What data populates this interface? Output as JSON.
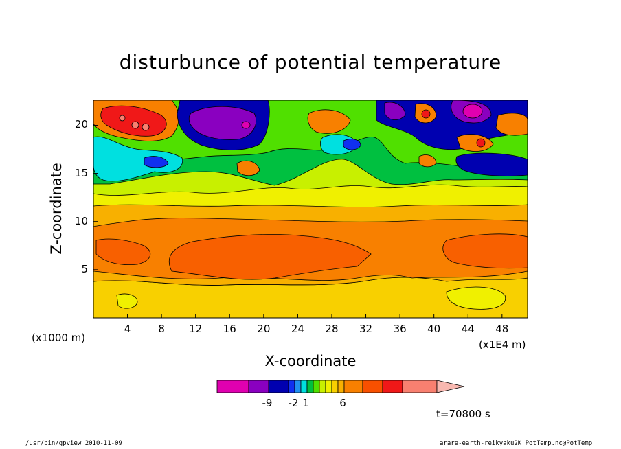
{
  "chart_data": {
    "type": "heatmap",
    "title": "disturbunce of potential temperature",
    "xlabel": "X-coordinate",
    "ylabel": "Z-coordinate",
    "x_unit": "(x1E4 m)",
    "y_unit": "(x1000 m)",
    "x_ticks": [
      "4",
      "8",
      "12",
      "16",
      "20",
      "24",
      "28",
      "32",
      "36",
      "40",
      "44",
      "48"
    ],
    "y_ticks": [
      "5",
      "10",
      "15",
      "20"
    ],
    "xlim": [
      0,
      51
    ],
    "ylim": [
      0,
      22.6
    ],
    "colorbar": {
      "labels": [
        "-9",
        "-2",
        "1",
        "6"
      ],
      "colors": [
        "#e000b0",
        "#8a00c0",
        "#0000b0",
        "#1030f0",
        "#2090f0",
        "#00e0e0",
        "#00c040",
        "#50e000",
        "#c8f000",
        "#f0f000",
        "#f8d000",
        "#f8b000",
        "#f88000",
        "#f85000",
        "#f01818",
        "#f88070",
        "#f8b8b0"
      ]
    },
    "field_description": "layered positive anomalies 5-10 km, mixed positive/negative anomalies above 14 km",
    "time": "t=70800 s"
  },
  "footer": {
    "left": "/usr/bin/gpview   2010-11-09",
    "right": "arare-earth-reikyaku2K_PotTemp.nc@PotTemp"
  }
}
